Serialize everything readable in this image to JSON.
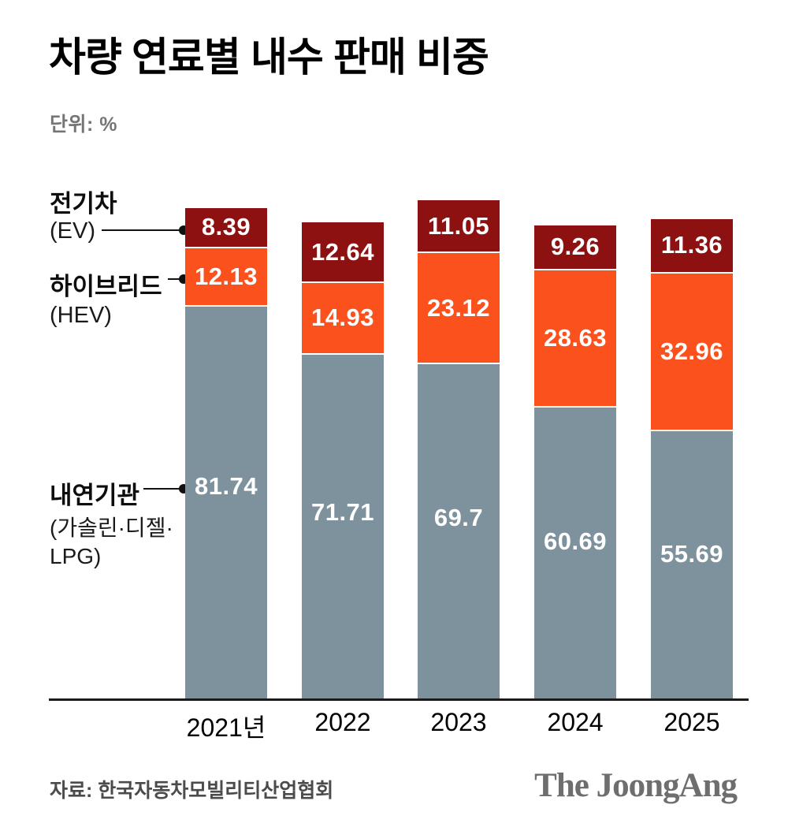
{
  "title": "차량 연료별 내수 판매 비중",
  "unit_label": "단위: %",
  "source": "자료: 한국자동차모빌리티산업협회",
  "brand_logo": "The JoongAng",
  "annotations": {
    "ev_name": "전기차",
    "ev_sub": "(EV)",
    "hev_name": "하이브리드",
    "hev_sub": "(HEV)",
    "ice_name": "내연기관",
    "ice_sub_line1": "(가솔린·디젤·",
    "ice_sub_line2": "LPG)"
  },
  "colors": {
    "ev": "#8e1111",
    "hev": "#fb521d",
    "ice": "#7e929e",
    "axis": "#1a1a1a",
    "value_label": "#ffffff"
  },
  "chart_data": {
    "type": "bar",
    "stacked": true,
    "orientation": "vertical",
    "title": "차량 연료별 내수 판매 비중",
    "unit": "%",
    "categories": [
      "2021년",
      "2022",
      "2023",
      "2024",
      "2025"
    ],
    "series": [
      {
        "name": "전기차 (EV)",
        "key": "ev",
        "color": "#8e1111",
        "values": [
          8.39,
          12.64,
          11.05,
          9.26,
          11.36
        ],
        "labels": [
          "8.39",
          "12.64",
          "11.05",
          "9.26",
          "11.36"
        ]
      },
      {
        "name": "하이브리드 (HEV)",
        "key": "hev",
        "color": "#fb521d",
        "values": [
          12.13,
          14.93,
          23.12,
          28.63,
          32.96
        ],
        "labels": [
          "12.13",
          "14.93",
          "23.12",
          "28.63",
          "32.96"
        ]
      },
      {
        "name": "내연기관 (가솔린·디젤·LPG)",
        "key": "ice",
        "color": "#7e929e",
        "values": [
          81.74,
          71.71,
          69.7,
          60.69,
          55.69
        ],
        "labels": [
          "81.74",
          "71.71",
          "69.7",
          "60.69",
          "55.69"
        ]
      }
    ],
    "grid": false,
    "legend_position": "left annotations with leader lines",
    "source": "자료: 한국자동차모빌리티산업협회"
  }
}
